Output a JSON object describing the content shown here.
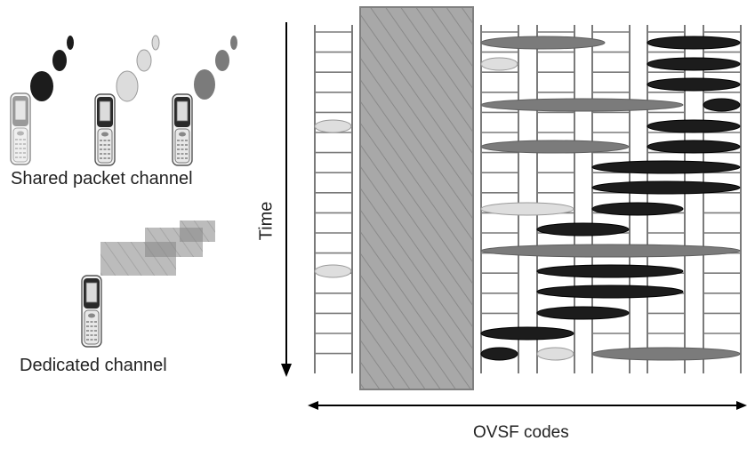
{
  "labels": {
    "shared_packet_channel": "Shared packet channel",
    "dedicated_channel": "Dedicated channel",
    "time_axis": "Time",
    "codes_axis": "OVSF codes"
  },
  "colors": {
    "ladder": "#7a7a7a",
    "dedicated_block": "#9a9a9a",
    "packet_black": "#1c1c1c",
    "packet_gray": "#7b7b7b",
    "packet_light": "#dedede"
  },
  "icons": [
    "phone-icon",
    "packet-bubble-icon",
    "dedicated-block-icon"
  ]
}
